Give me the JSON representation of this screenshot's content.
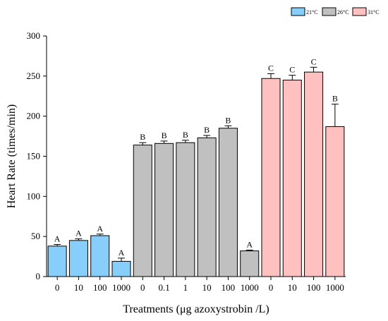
{
  "chart_data": {
    "type": "bar",
    "title": "",
    "xlabel": "Treatments (μg azoxystrobin /L)",
    "ylabel": "Heart Rate (times/min)",
    "ylim": [
      0,
      300
    ],
    "yticks": [
      "0",
      "50",
      "100",
      "150",
      "200",
      "250",
      "300"
    ],
    "grid": false,
    "legend_position": "top-right",
    "series": [
      {
        "name": "21°C",
        "color": "#87cefa",
        "categories": [
          "0",
          "10",
          "100",
          "1000"
        ],
        "values": [
          38,
          45,
          51,
          19
        ],
        "errors": [
          2,
          2,
          2,
          4
        ],
        "letters": [
          "A",
          "A",
          "A",
          "A"
        ]
      },
      {
        "name": "26°C",
        "color": "#c0c0c0",
        "categories": [
          "0",
          "0.1",
          "1",
          "10",
          "100",
          "1000"
        ],
        "values": [
          164,
          166,
          167,
          173,
          185,
          32
        ],
        "errors": [
          3,
          3,
          3,
          3,
          3,
          1
        ],
        "letters": [
          "B",
          "B",
          "B",
          "B",
          "B",
          "A"
        ]
      },
      {
        "name": "31°C",
        "color": "#ffc0c0",
        "categories": [
          "0",
          "10",
          "100",
          "1000"
        ],
        "values": [
          247,
          245,
          255,
          187
        ],
        "errors": [
          6,
          6,
          6,
          28
        ],
        "letters": [
          "C",
          "C",
          "C",
          "B"
        ]
      }
    ]
  }
}
